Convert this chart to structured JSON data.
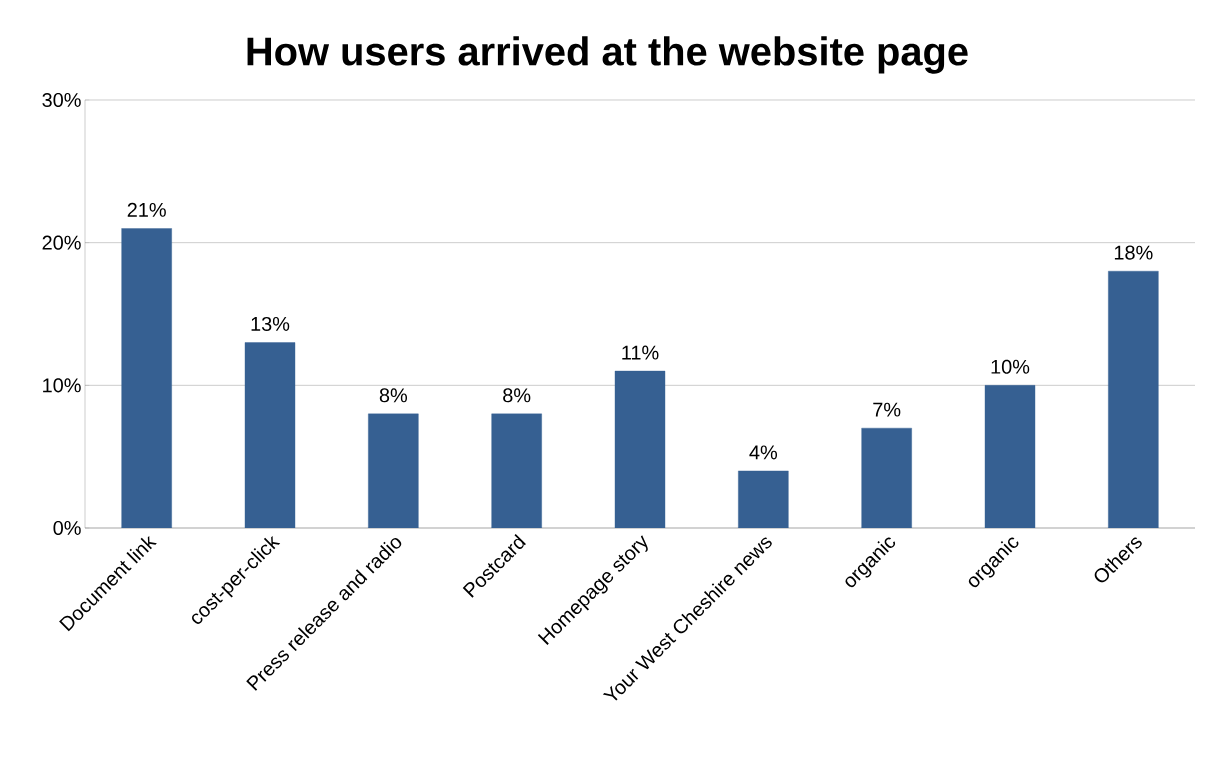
{
  "chart_data": {
    "type": "bar",
    "title": "How users arrived at the website page",
    "categories": [
      "Document link",
      "cost-per-click",
      "Press release and radio",
      "Postcard",
      "Homepage story",
      "Your West Cheshire news",
      "organic",
      "organic",
      "Others"
    ],
    "values": [
      21,
      13,
      8,
      8,
      11,
      4,
      7,
      10,
      18
    ],
    "value_labels": [
      "21%",
      "13%",
      "8%",
      "8%",
      "11%",
      "4%",
      "7%",
      "10%",
      "18%"
    ],
    "color": "#366092",
    "ylim": [
      0,
      30
    ],
    "yticks": [
      {
        "value": 0,
        "label": "0%"
      },
      {
        "value": 10,
        "label": "10%"
      },
      {
        "value": 20,
        "label": "20%"
      },
      {
        "value": 30,
        "label": "30%"
      }
    ],
    "grid": "y"
  }
}
